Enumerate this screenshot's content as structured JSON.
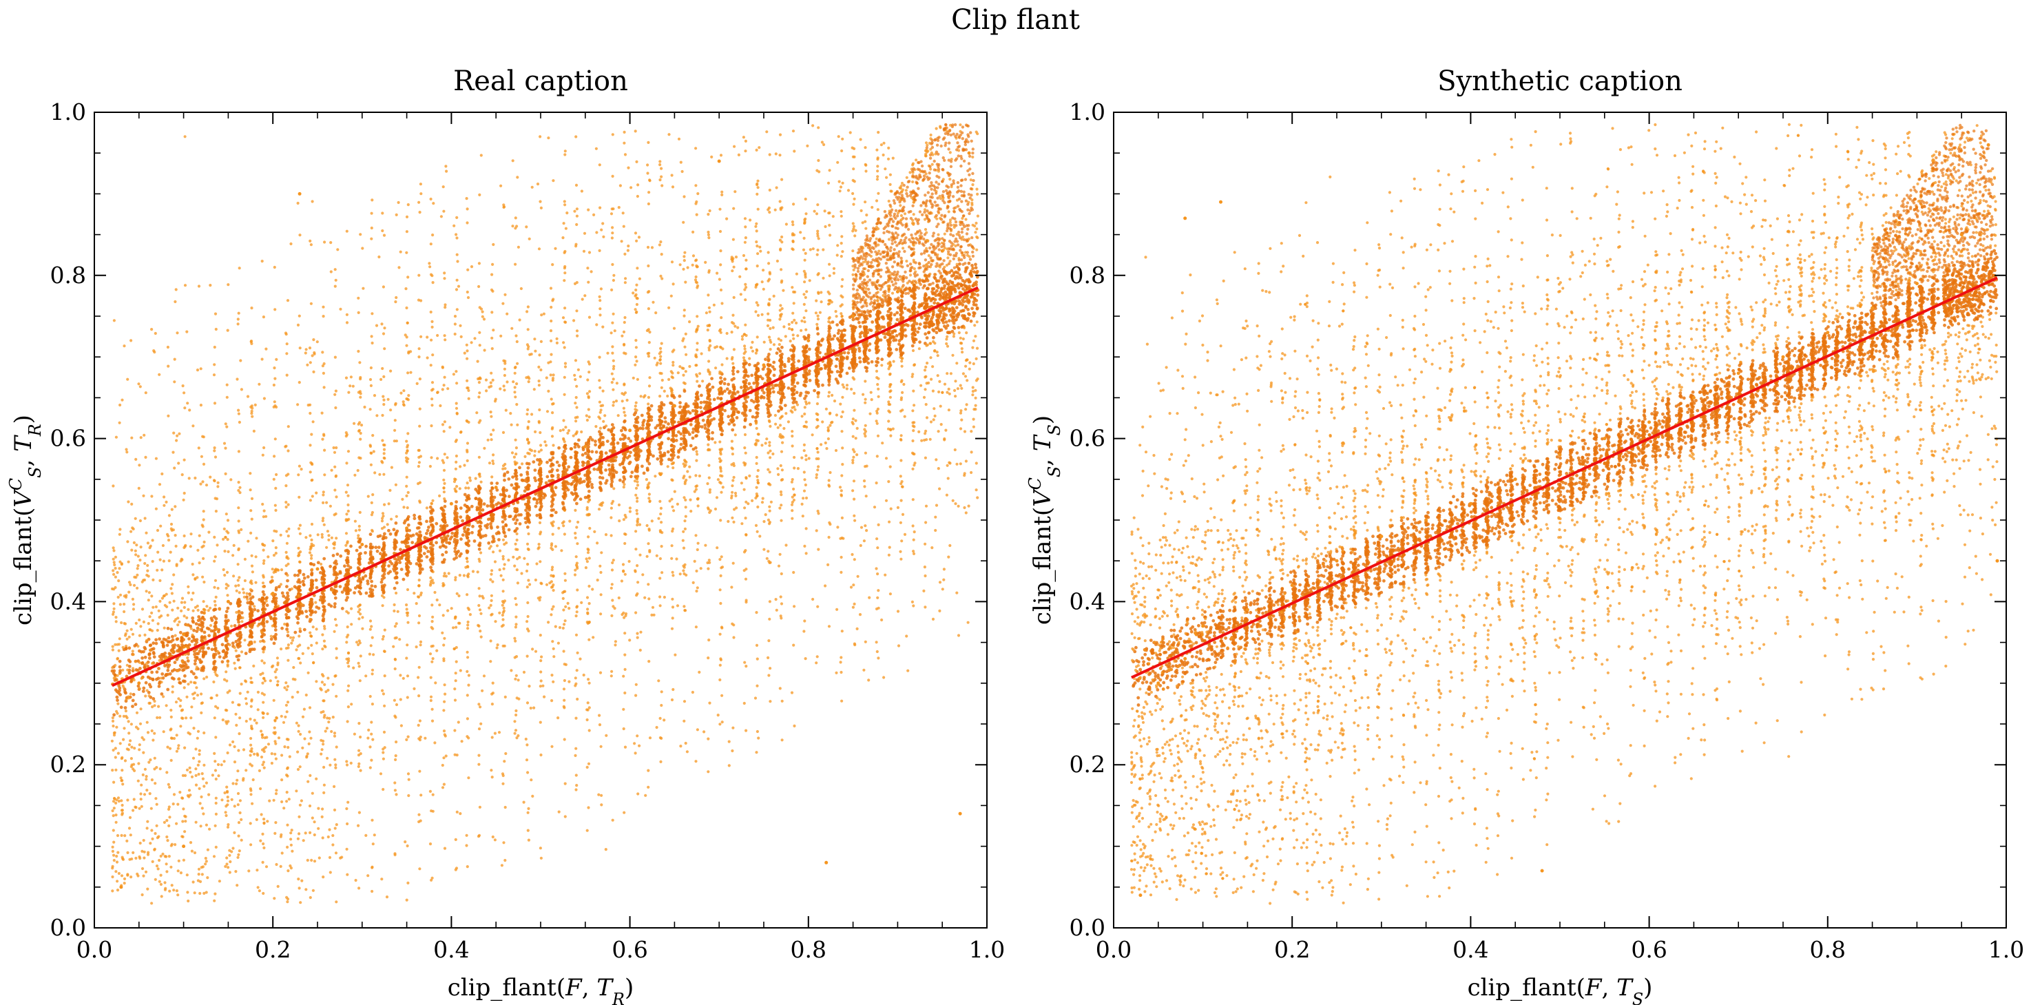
{
  "figure_title": "Clip flant",
  "colors": {
    "points": "#f5951f",
    "points_dense": "#e8760f",
    "fit_line": "#ee1111",
    "axes": "#000000"
  },
  "chart_data": [
    {
      "type": "scatter",
      "title": "Real caption",
      "xlabel": "clip_flant(F, T_R)",
      "ylabel": "clip_flant(V_S^C, T_R)",
      "xlim": [
        0.0,
        1.0
      ],
      "ylim": [
        0.0,
        1.0
      ],
      "xticks": [
        "0.0",
        "0.2",
        "0.4",
        "0.6",
        "0.8",
        "1.0"
      ],
      "yticks": [
        "0.0",
        "0.2",
        "0.4",
        "0.6",
        "0.8",
        "1.0"
      ],
      "grid": false,
      "legend": "none",
      "point_count_approx": 20000,
      "points_sample": [
        [
          0.05,
          0.3
        ],
        [
          0.08,
          0.33
        ],
        [
          0.1,
          0.36
        ],
        [
          0.15,
          0.4
        ],
        [
          0.2,
          0.41
        ],
        [
          0.25,
          0.44
        ],
        [
          0.3,
          0.47
        ],
        [
          0.35,
          0.49
        ],
        [
          0.4,
          0.52
        ],
        [
          0.45,
          0.54
        ],
        [
          0.5,
          0.57
        ],
        [
          0.55,
          0.59
        ],
        [
          0.6,
          0.61
        ],
        [
          0.65,
          0.64
        ],
        [
          0.7,
          0.66
        ],
        [
          0.75,
          0.69
        ],
        [
          0.8,
          0.72
        ],
        [
          0.85,
          0.75
        ],
        [
          0.9,
          0.78
        ],
        [
          0.95,
          0.83
        ],
        [
          0.98,
          0.95
        ],
        [
          0.03,
          0.05
        ],
        [
          0.1,
          0.1
        ],
        [
          0.23,
          0.9
        ],
        [
          0.7,
          0.94
        ],
        [
          0.82,
          0.08
        ],
        [
          0.97,
          0.14
        ]
      ],
      "fit_line": {
        "x": [
          0.02,
          0.99
        ],
        "y": [
          0.297,
          0.785
        ]
      }
    },
    {
      "type": "scatter",
      "title": "Synthetic caption",
      "xlabel": "clip_flant(F, T_S)",
      "ylabel": "clip_flant(V_S^C, T_S)",
      "xlim": [
        0.0,
        1.0
      ],
      "ylim": [
        0.0,
        1.0
      ],
      "xticks": [
        "0.0",
        "0.2",
        "0.4",
        "0.6",
        "0.8",
        "1.0"
      ],
      "yticks": [
        "0.0",
        "0.2",
        "0.4",
        "0.6",
        "0.8",
        "1.0"
      ],
      "grid": false,
      "legend": "none",
      "point_count_approx": 20000,
      "points_sample": [
        [
          0.05,
          0.3
        ],
        [
          0.08,
          0.33
        ],
        [
          0.1,
          0.37
        ],
        [
          0.15,
          0.39
        ],
        [
          0.2,
          0.42
        ],
        [
          0.25,
          0.45
        ],
        [
          0.3,
          0.48
        ],
        [
          0.35,
          0.5
        ],
        [
          0.4,
          0.52
        ],
        [
          0.45,
          0.55
        ],
        [
          0.5,
          0.58
        ],
        [
          0.55,
          0.6
        ],
        [
          0.6,
          0.62
        ],
        [
          0.65,
          0.65
        ],
        [
          0.7,
          0.68
        ],
        [
          0.75,
          0.7
        ],
        [
          0.8,
          0.73
        ],
        [
          0.85,
          0.76
        ],
        [
          0.9,
          0.79
        ],
        [
          0.95,
          0.85
        ],
        [
          0.98,
          0.96
        ],
        [
          0.03,
          0.04
        ],
        [
          0.08,
          0.87
        ],
        [
          0.12,
          0.89
        ],
        [
          0.48,
          0.07
        ],
        [
          0.99,
          0.45
        ]
      ],
      "fit_line": {
        "x": [
          0.02,
          0.99
        ],
        "y": [
          0.307,
          0.797
        ]
      }
    }
  ]
}
